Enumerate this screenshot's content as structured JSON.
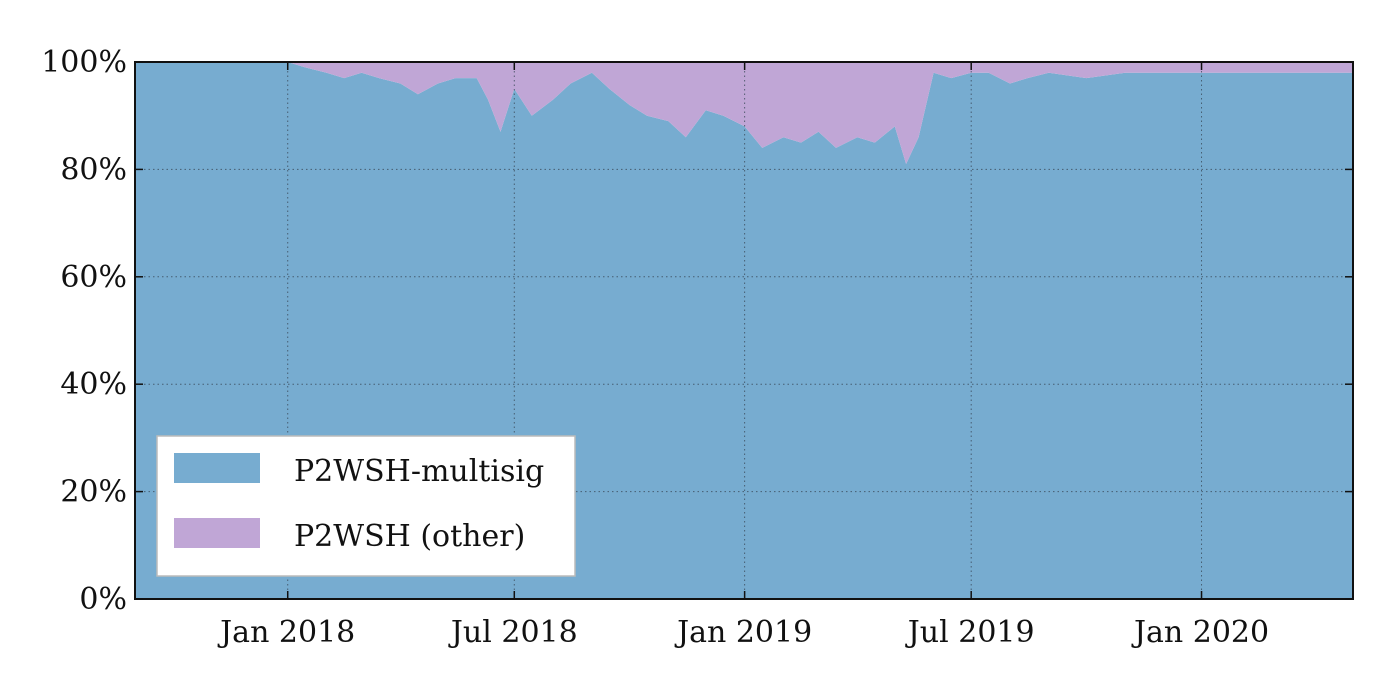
{
  "chart_data": {
    "type": "area",
    "stacked": true,
    "normalized": true,
    "x_range": [
      "2017-09-01",
      "2020-05-01"
    ],
    "ylim": [
      0,
      100
    ],
    "y_ticks": [
      0,
      20,
      40,
      60,
      80,
      100
    ],
    "y_tick_labels": [
      "0%",
      "20%",
      "40%",
      "60%",
      "80%",
      "100%"
    ],
    "x_ticks": [
      "2018-01-01",
      "2018-07-01",
      "2019-01-01",
      "2019-07-01",
      "2020-01-01"
    ],
    "x_tick_labels": [
      "Jan 2018",
      "Jul 2018",
      "Jan 2019",
      "Jul 2019",
      "Jan 2020"
    ],
    "grid": true,
    "legend_position": "bottom-left",
    "x": [
      "2017-09-01",
      "2017-10-01",
      "2017-11-01",
      "2017-12-01",
      "2018-01-01",
      "2018-01-15",
      "2018-02-01",
      "2018-02-15",
      "2018-03-01",
      "2018-03-15",
      "2018-04-01",
      "2018-04-15",
      "2018-05-01",
      "2018-05-15",
      "2018-06-01",
      "2018-06-10",
      "2018-06-20",
      "2018-07-01",
      "2018-07-15",
      "2018-08-01",
      "2018-08-15",
      "2018-09-01",
      "2018-09-15",
      "2018-10-01",
      "2018-10-15",
      "2018-11-01",
      "2018-11-15",
      "2018-12-01",
      "2018-12-15",
      "2019-01-01",
      "2019-01-15",
      "2019-02-01",
      "2019-02-15",
      "2019-03-01",
      "2019-03-15",
      "2019-04-01",
      "2019-04-15",
      "2019-05-01",
      "2019-05-10",
      "2019-05-20",
      "2019-06-01",
      "2019-06-15",
      "2019-07-01",
      "2019-07-15",
      "2019-08-01",
      "2019-08-15",
      "2019-09-01",
      "2019-10-01",
      "2019-11-01",
      "2019-12-01",
      "2020-01-01",
      "2020-02-01",
      "2020-03-01",
      "2020-04-01",
      "2020-05-01"
    ],
    "series": [
      {
        "name": "P2WSH-multisig",
        "color": "#77acd0",
        "values": [
          100,
          100,
          100,
          100,
          100,
          99,
          98,
          97,
          98,
          97,
          96,
          94,
          96,
          97,
          97,
          93,
          87,
          95,
          90,
          93,
          96,
          98,
          95,
          92,
          90,
          89,
          86,
          91,
          90,
          88,
          84,
          86,
          85,
          87,
          84,
          86,
          85,
          88,
          81,
          86,
          98,
          97,
          98,
          98,
          96,
          97,
          98,
          97,
          98,
          98,
          98,
          98,
          98,
          98,
          98
        ]
      },
      {
        "name": "P2WSH (other)",
        "color": "#c0a6d6",
        "values": [
          0,
          0,
          0,
          0,
          0,
          1,
          2,
          3,
          2,
          3,
          4,
          6,
          4,
          3,
          3,
          7,
          13,
          5,
          10,
          7,
          4,
          2,
          5,
          8,
          10,
          11,
          14,
          9,
          10,
          12,
          16,
          14,
          15,
          13,
          16,
          14,
          15,
          12,
          19,
          14,
          2,
          3,
          2,
          2,
          4,
          3,
          2,
          3,
          2,
          2,
          2,
          2,
          2,
          2,
          2
        ]
      }
    ]
  }
}
